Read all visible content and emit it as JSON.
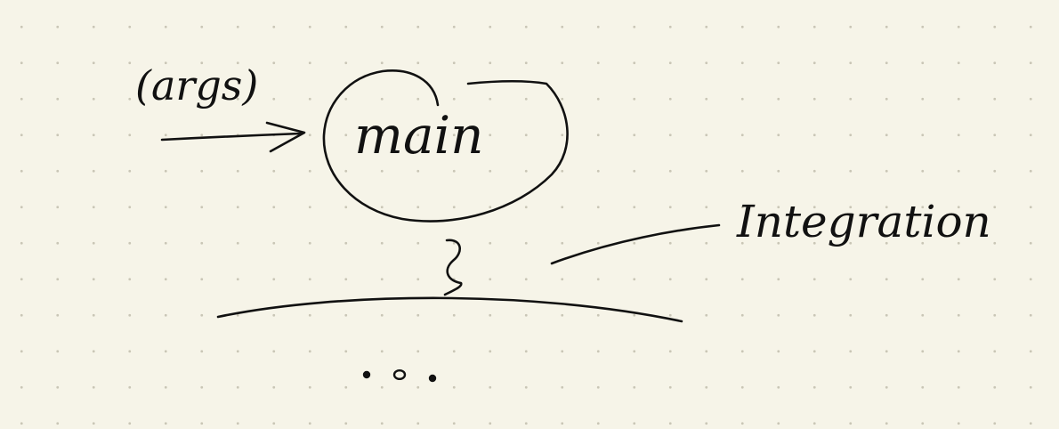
{
  "diagram": {
    "input_label": "(args)",
    "node_label": "main",
    "context_label": "Integration",
    "ellipsis": "..."
  },
  "colors": {
    "background": "#f6f4e8",
    "grid_dots": "#c9c6b6",
    "ink": "#111111"
  }
}
